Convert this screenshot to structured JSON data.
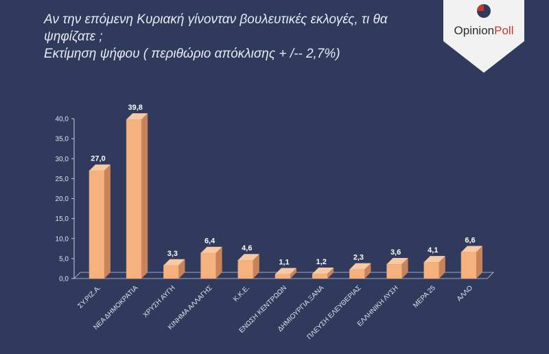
{
  "title": {
    "line1": "Αν την επόμενη Κυριακή γίνονταν βουλευτικές εκλογές, τι θα",
    "line2": "ψηφίζατε ;",
    "line3": "Εκτίμηση ψήφου ( περιθώριο απόκλισης + /-- 2,7%)"
  },
  "logo": {
    "part1": "Opinion",
    "part2": "Poll"
  },
  "colors": {
    "background": "#2f3a5c",
    "bar_front": "#f5b27f",
    "bar_side": "#c9835a",
    "bar_top": "#f8c9a3",
    "axis": "#c8cde0",
    "logo_red": "#c0392b"
  },
  "chart_data": {
    "type": "bar",
    "categories": [
      "ΣΥ.ΡΙΖ.Α.",
      "ΝΕΑ ΔΗΜΟΚΡΑΤΙΑ",
      "ΧΡΥΣΗ ΑΥΓΗ",
      "ΚΙΝΗΜΑ ΑΛΛΑΓΗΣ",
      "Κ.Κ.Ε.",
      "ΕΝΩΣΗ ΚΕΝΤΡΩΩΝ",
      "ΔΗΜΙΟΥΡΓΙΑ ΞΑΝΑ",
      "ΠΛΕΥΣΗ ΕΛΕΥΘΕΡΙΑΣ",
      "ΕΛΛΗΝΙΚΗ ΛΥΣΗ",
      "ΜΕΡΑ 25",
      "ΑΛΛΟ"
    ],
    "values": [
      27.0,
      39.8,
      3.3,
      6.4,
      4.6,
      1.1,
      1.2,
      2.3,
      3.6,
      4.1,
      6.6
    ],
    "value_labels": [
      "27,0",
      "39,8",
      "3,3",
      "6,4",
      "4,6",
      "1,1",
      "1,2",
      "2,3",
      "3,6",
      "4,1",
      "6,6"
    ],
    "ylim": [
      0,
      40
    ],
    "yticks": [
      "0,0",
      "5,0",
      "10,0",
      "15,0",
      "20,0",
      "25,0",
      "30,0",
      "35,0",
      "40,0"
    ],
    "grid": false,
    "style": "3d"
  }
}
